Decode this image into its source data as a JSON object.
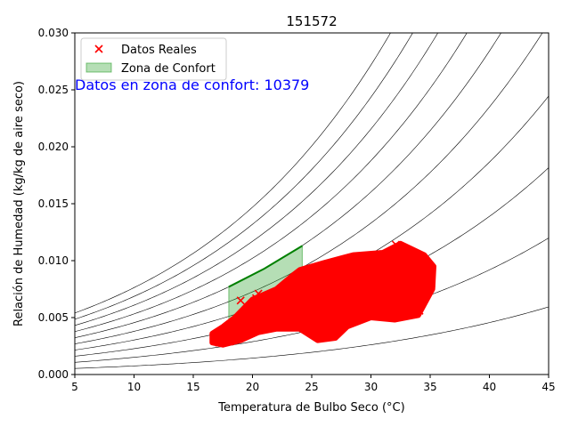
{
  "chart_data": {
    "type": "scatter",
    "title": "151572",
    "xlabel": "Temperatura de Bulbo Seco (°C)",
    "ylabel": "Relación de Humedad (kg/kg de aire seco)",
    "xlim": [
      5,
      45
    ],
    "ylim": [
      0,
      0.03
    ],
    "xticks": [
      5,
      10,
      15,
      20,
      25,
      30,
      35,
      40,
      45
    ],
    "xtick_labels": [
      "5",
      "10",
      "15",
      "20",
      "25",
      "30",
      "35",
      "40",
      "45"
    ],
    "yticks": [
      0,
      0.005,
      0.01,
      0.015,
      0.02,
      0.025,
      0.03
    ],
    "ytick_labels": [
      "0.000",
      "0.005",
      "0.010",
      "0.015",
      "0.020",
      "0.025",
      "0.030"
    ],
    "annotation": "Datos en zona de confort: 10379",
    "annotation_color": "#0000ff",
    "legend_position": "upper-left",
    "legend": [
      {
        "label": "Datos Reales",
        "marker": "x",
        "color": "#ff0000"
      },
      {
        "label": "Zona de Confort",
        "marker": "patch",
        "color": "#2ca02c"
      }
    ],
    "rh_curves": [
      0.1,
      0.2,
      0.3,
      0.4,
      0.5,
      0.6,
      0.7,
      0.8,
      0.9,
      1.0
    ],
    "comfort_zone": {
      "x_range": [
        18,
        24.2
      ],
      "lower_curve": [
        [
          18,
          0.0038
        ],
        [
          21,
          0.0046
        ],
        [
          24.2,
          0.0056
        ]
      ],
      "upper_curve": [
        [
          18,
          0.0077
        ],
        [
          21,
          0.0093
        ],
        [
          24.2,
          0.0113
        ]
      ],
      "fill_color": "#2ca02c",
      "edge_color": "#008000"
    },
    "data_cloud": {
      "name": "Datos Reales",
      "color": "#ff0000",
      "envelope": [
        [
          16.6,
          0.0028
        ],
        [
          17.5,
          0.0026
        ],
        [
          19,
          0.003
        ],
        [
          20.5,
          0.0037
        ],
        [
          22,
          0.004
        ],
        [
          24,
          0.004
        ],
        [
          25.5,
          0.003
        ],
        [
          27,
          0.0032
        ],
        [
          28,
          0.0042
        ],
        [
          30,
          0.005
        ],
        [
          32,
          0.0048
        ],
        [
          34,
          0.0052
        ],
        [
          35.2,
          0.0075
        ],
        [
          35.3,
          0.0095
        ],
        [
          34.5,
          0.0105
        ],
        [
          32.5,
          0.0115
        ],
        [
          31,
          0.0107
        ],
        [
          28.5,
          0.0105
        ],
        [
          26,
          0.0098
        ],
        [
          24,
          0.0092
        ],
        [
          23.5,
          0.0088
        ],
        [
          22,
          0.0075
        ],
        [
          20,
          0.0066
        ],
        [
          18.5,
          0.005
        ],
        [
          17.5,
          0.0042
        ],
        [
          16.6,
          0.0036
        ]
      ],
      "samples": [
        [
          16.8,
          0.0031
        ],
        [
          17.2,
          0.0028
        ],
        [
          17.6,
          0.0034
        ],
        [
          18.1,
          0.0029
        ],
        [
          18.5,
          0.0037
        ],
        [
          19.0,
          0.0065
        ],
        [
          20.3,
          0.0067
        ],
        [
          20.5,
          0.0071
        ],
        [
          20.8,
          0.0062
        ],
        [
          19.5,
          0.004
        ],
        [
          21.2,
          0.0045
        ],
        [
          22.3,
          0.007
        ],
        [
          22.8,
          0.005
        ],
        [
          23.5,
          0.0084
        ],
        [
          24.0,
          0.0043
        ],
        [
          25.3,
          0.0034
        ],
        [
          25.8,
          0.0058
        ],
        [
          26.4,
          0.0096
        ],
        [
          26.9,
          0.0036
        ],
        [
          27.6,
          0.0077
        ],
        [
          28.3,
          0.0101
        ],
        [
          28.9,
          0.0055
        ],
        [
          29.7,
          0.0088
        ],
        [
          30.4,
          0.0062
        ],
        [
          31.2,
          0.0104
        ],
        [
          32.1,
          0.0114
        ],
        [
          32.7,
          0.0069
        ],
        [
          33.4,
          0.0093
        ],
        [
          34.1,
          0.0056
        ],
        [
          34.8,
          0.0087
        ],
        [
          35.1,
          0.008
        ],
        [
          33.9,
          0.0101
        ],
        [
          31.8,
          0.0052
        ],
        [
          30.0,
          0.0078
        ],
        [
          27.2,
          0.0049
        ],
        [
          24.6,
          0.0061
        ],
        [
          23.0,
          0.0059
        ],
        [
          21.6,
          0.0053
        ],
        [
          29.3,
          0.0097
        ],
        [
          26.1,
          0.0085
        ]
      ]
    }
  }
}
